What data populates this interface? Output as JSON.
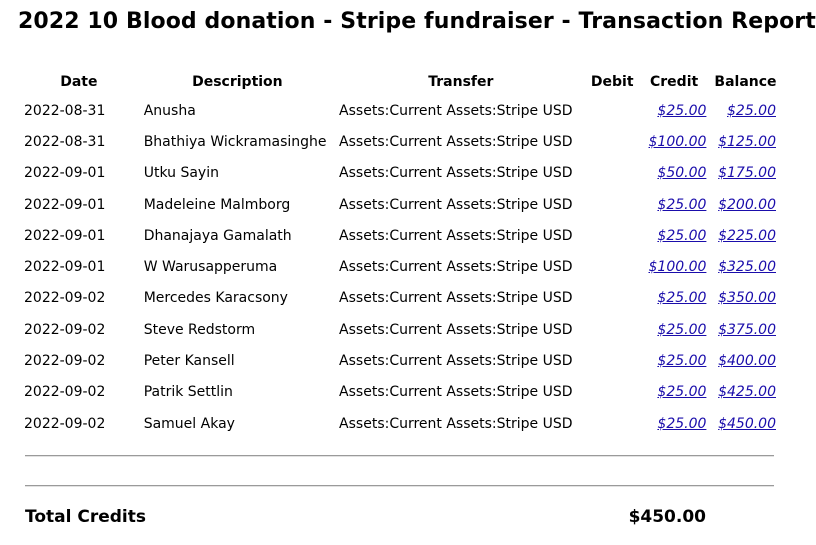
{
  "report": {
    "title": "2022 10 Blood donation - Stripe fundraiser - Transaction Report"
  },
  "table": {
    "headers": {
      "date": "Date",
      "description": "Description",
      "transfer": "Transfer",
      "debit": "Debit",
      "credit": "Credit",
      "balance": "Balance"
    },
    "rows": [
      {
        "date": "2022-08-31",
        "description": "Anusha",
        "transfer": "Assets:Current Assets:Stripe USD",
        "debit": "",
        "credit": "$25.00",
        "balance": "$25.00"
      },
      {
        "date": "2022-08-31",
        "description": "Bhathiya Wickramasinghe",
        "transfer": "Assets:Current Assets:Stripe USD",
        "debit": "",
        "credit": "$100.00",
        "balance": "$125.00"
      },
      {
        "date": "2022-09-01",
        "description": "Utku Sayin",
        "transfer": "Assets:Current Assets:Stripe USD",
        "debit": "",
        "credit": "$50.00",
        "balance": "$175.00"
      },
      {
        "date": "2022-09-01",
        "description": "Madeleine Malmborg",
        "transfer": "Assets:Current Assets:Stripe USD",
        "debit": "",
        "credit": "$25.00",
        "balance": "$200.00"
      },
      {
        "date": "2022-09-01",
        "description": "Dhanajaya Gamalath",
        "transfer": "Assets:Current Assets:Stripe USD",
        "debit": "",
        "credit": "$25.00",
        "balance": "$225.00"
      },
      {
        "date": "2022-09-01",
        "description": "W Warusapperuma",
        "transfer": "Assets:Current Assets:Stripe USD",
        "debit": "",
        "credit": "$100.00",
        "balance": "$325.00"
      },
      {
        "date": "2022-09-02",
        "description": "Mercedes Karacsony",
        "transfer": "Assets:Current Assets:Stripe USD",
        "debit": "",
        "credit": "$25.00",
        "balance": "$350.00"
      },
      {
        "date": "2022-09-02",
        "description": "Steve Redstorm",
        "transfer": "Assets:Current Assets:Stripe USD",
        "debit": "",
        "credit": "$25.00",
        "balance": "$375.00"
      },
      {
        "date": "2022-09-02",
        "description": "Peter Kansell",
        "transfer": "Assets:Current Assets:Stripe USD",
        "debit": "",
        "credit": "$25.00",
        "balance": "$400.00"
      },
      {
        "date": "2022-09-02",
        "description": "Patrik Settlin",
        "transfer": "Assets:Current Assets:Stripe USD",
        "debit": "",
        "credit": "$25.00",
        "balance": "$425.00"
      },
      {
        "date": "2022-09-02",
        "description": "Samuel Akay",
        "transfer": "Assets:Current Assets:Stripe USD",
        "debit": "",
        "credit": "$25.00",
        "balance": "$450.00"
      }
    ]
  },
  "totals": {
    "label": "Total Credits",
    "value": "$450.00"
  },
  "colors": {
    "link": "#1a0dab",
    "text": "#000000",
    "separator": "#9a9a9a"
  }
}
